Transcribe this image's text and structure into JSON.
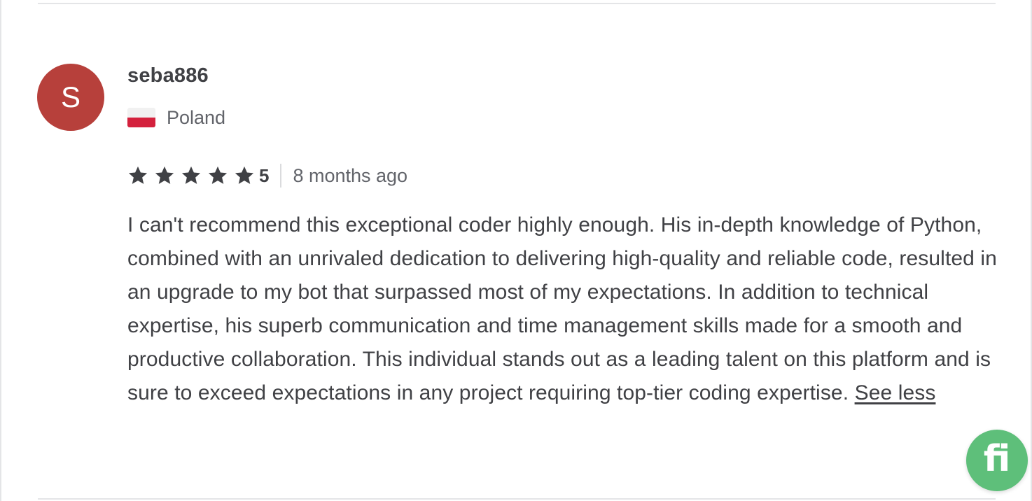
{
  "review": {
    "avatar_letter": "S",
    "username": "seba886",
    "country": "Poland",
    "rating": "5",
    "star_count": 5,
    "time_ago": "8 months ago",
    "text": "I can't recommend this exceptional coder highly enough. His in-depth knowledge of Python, combined with an unrivaled dedication to delivering high-quality and reliable code, resulted in an upgrade to my bot that surpassed most of my expectations. In addition to technical expertise, his superb communication and time management skills made for a smooth and productive collaboration. This individual stands out as a leading talent on this platform and is sure to exceed expectations in any project requiring top-tier coding expertise.",
    "see_less_label": "See less"
  },
  "chat_widget": {
    "logo_text": "fi",
    "icon": "fiverr-logo-icon"
  },
  "colors": {
    "avatar_bg": "#b7403b",
    "star": "#404145",
    "text": "#404145",
    "secondary_text": "#62646a",
    "fab_bg": "#5ebf7a",
    "flag_red": "#d4213d"
  }
}
